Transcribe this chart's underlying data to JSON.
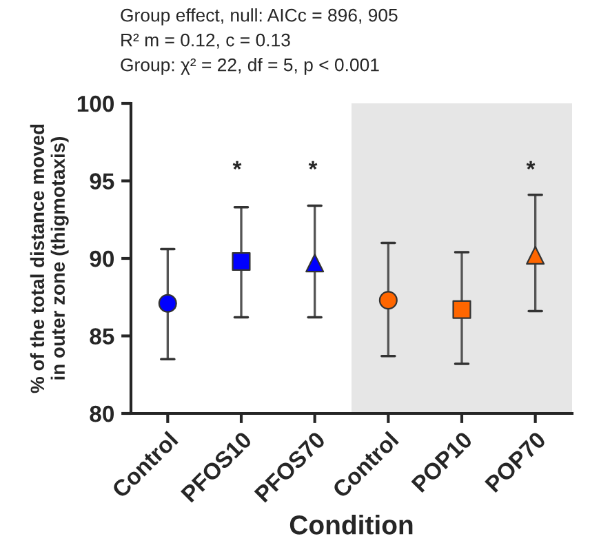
{
  "chart_data": {
    "type": "scatter",
    "annotations": [
      "Group effect, null: AICc = 896, 905",
      "R² m = 0.12, c = 0.13",
      "Group: χ² = 22, df = 5, p < 0.001",
      "*",
      "*",
      "*"
    ],
    "xlabel": "Condition",
    "ylabel": "% of the total distance moved\nin outer zone (thigmotaxis)",
    "categories": [
      "Control",
      "PFOS10",
      "PFOS70",
      "Control",
      "POP10",
      "POP70"
    ],
    "series": [
      {
        "marker": "circle",
        "colors": [
          "#0000ff",
          null,
          null,
          "#ff6600",
          null,
          null
        ],
        "values": [
          87.1,
          null,
          null,
          87.3,
          null,
          null
        ],
        "errors": [
          [
            83.5,
            90.6
          ],
          null,
          null,
          [
            83.7,
            91.0
          ],
          null,
          null
        ]
      },
      {
        "marker": "square",
        "colors": [
          null,
          "#0000ff",
          null,
          null,
          "#ff6600",
          null
        ],
        "values": [
          null,
          89.8,
          null,
          null,
          86.7,
          null
        ],
        "errors": [
          null,
          [
            86.2,
            93.3
          ],
          null,
          null,
          [
            83.2,
            90.4
          ],
          null
        ]
      },
      {
        "marker": "triangle",
        "colors": [
          null,
          null,
          "#0000ff",
          null,
          null,
          "#ff6600"
        ],
        "values": [
          null,
          null,
          89.7,
          null,
          null,
          90.2
        ],
        "errors": [
          null,
          null,
          [
            86.2,
            93.4
          ],
          null,
          null,
          [
            86.6,
            94.1
          ]
        ]
      }
    ],
    "ylim": [
      80,
      100
    ],
    "yticks": [
      80,
      85,
      90,
      95,
      100
    ],
    "grid": false,
    "legend": false
  }
}
